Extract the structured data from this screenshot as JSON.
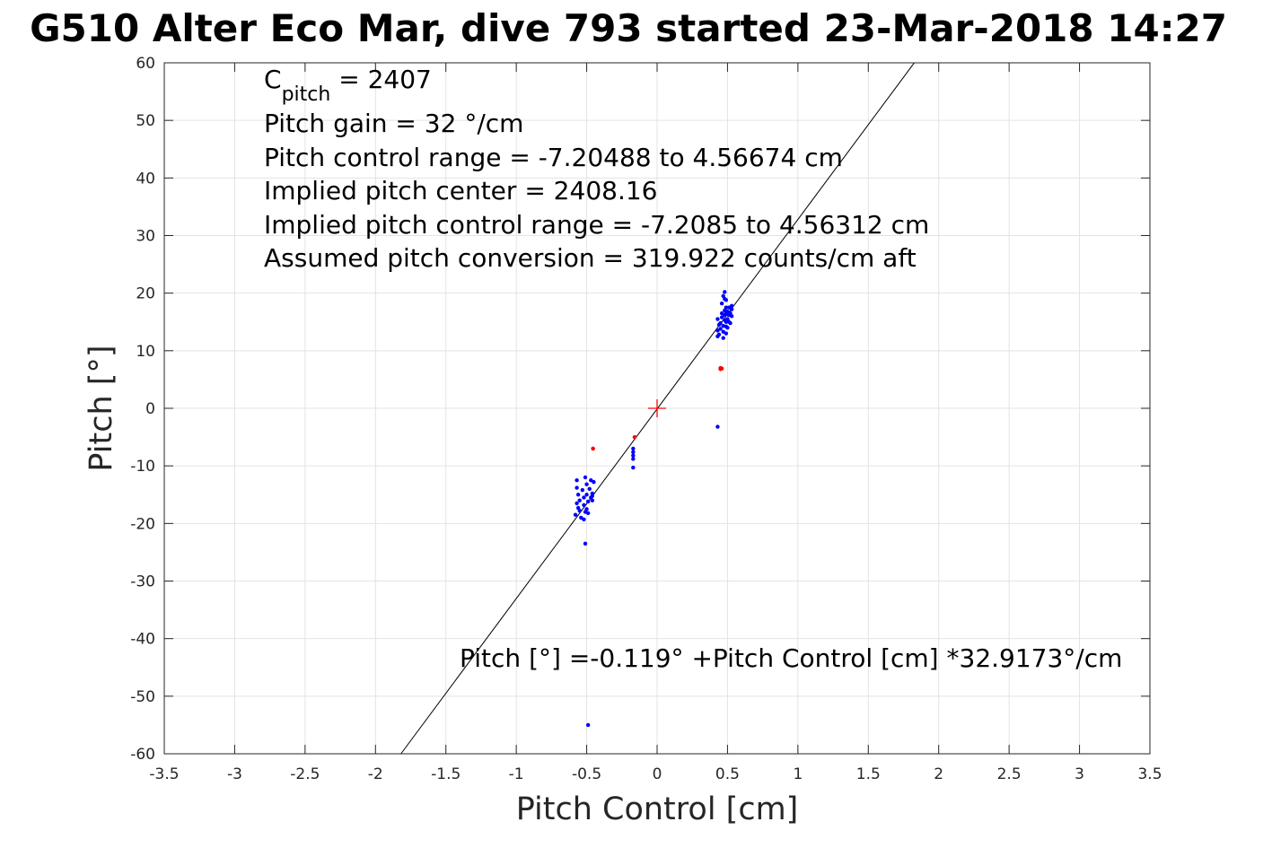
{
  "chart_data": {
    "type": "scatter",
    "title": "G510 Alter Eco Mar, dive 793 started 23-Mar-2018 14:27",
    "xlabel": "Pitch Control [cm]",
    "ylabel": "Pitch [°]",
    "xlim": [
      -3.5,
      3.5
    ],
    "ylim": [
      -60,
      60
    ],
    "xticks": [
      -3.5,
      -3,
      -2.5,
      -2,
      -1.5,
      -1,
      -0.5,
      0,
      0.5,
      1,
      1.5,
      2,
      2.5,
      3,
      3.5
    ],
    "xtick_labels": [
      "-3.5",
      "-3",
      "-2.5",
      "-2",
      "-1.5",
      "-1",
      "-0.5",
      "0",
      "0.5",
      "1",
      "1.5",
      "2",
      "2.5",
      "3",
      "3.5"
    ],
    "yticks": [
      -60,
      -50,
      -40,
      -30,
      -20,
      -10,
      0,
      10,
      20,
      30,
      40,
      50,
      60
    ],
    "ytick_labels": [
      "-60",
      "-50",
      "-40",
      "-30",
      "-20",
      "-10",
      "0",
      "10",
      "20",
      "30",
      "40",
      "50",
      "60"
    ],
    "grid": true,
    "fit_line": {
      "intercept": -0.119,
      "slope": 32.9173,
      "color": "#000000"
    },
    "center_marker": {
      "x": 0,
      "y": 0,
      "color": "#ff0000",
      "marker": "+"
    },
    "annotations": {
      "c_pitch_main": "C",
      "c_pitch_sub": "pitch",
      "c_pitch_value": " = 2407",
      "lines": [
        "Pitch gain = 32 °/cm",
        "Pitch control range = -7.20488 to 4.56674 cm",
        "Implied pitch center = 2408.16",
        "Implied pitch control range = -7.2085 to 4.56312 cm",
        "Assumed pitch conversion = 319.922 counts/cm aft"
      ],
      "fit_equation": "Pitch [°] =-0.119° +Pitch Control [cm] *32.9173°/cm"
    },
    "series": [
      {
        "color": "#0000ff",
        "points": [
          [
            -0.57,
            -12.5
          ],
          [
            -0.57,
            -13.8
          ],
          [
            -0.56,
            -15.0
          ],
          [
            -0.57,
            -16.5
          ],
          [
            -0.56,
            -17.3
          ],
          [
            -0.58,
            -18.5
          ],
          [
            -0.55,
            -17.8
          ],
          [
            -0.54,
            -19.0
          ],
          [
            -0.55,
            -16.0
          ],
          [
            -0.53,
            -14.2
          ],
          [
            -0.52,
            -15.5
          ],
          [
            -0.52,
            -16.8
          ],
          [
            -0.51,
            -18.0
          ],
          [
            -0.52,
            -19.3
          ],
          [
            -0.51,
            -12.0
          ],
          [
            -0.5,
            -13.2
          ],
          [
            -0.5,
            -15.0
          ],
          [
            -0.49,
            -16.2
          ],
          [
            -0.5,
            -17.5
          ],
          [
            -0.49,
            -18.2
          ],
          [
            -0.48,
            -14.0
          ],
          [
            -0.47,
            -15.5
          ],
          [
            -0.47,
            -12.5
          ],
          [
            -0.46,
            -14.8
          ],
          [
            -0.46,
            -16.0
          ],
          [
            -0.45,
            -12.8
          ],
          [
            -0.46,
            -15.2
          ],
          [
            -0.51,
            -23.5
          ],
          [
            -0.49,
            -55.0
          ],
          [
            -0.17,
            -7.0
          ],
          [
            -0.17,
            -7.6
          ],
          [
            -0.17,
            -8.2
          ],
          [
            -0.17,
            -8.8
          ],
          [
            -0.17,
            -10.3
          ],
          [
            0.43,
            -3.2
          ],
          [
            0.43,
            12.5
          ],
          [
            0.43,
            13.5
          ],
          [
            0.44,
            14.5
          ],
          [
            0.43,
            15.5
          ],
          [
            0.44,
            12.8
          ],
          [
            0.45,
            13.8
          ],
          [
            0.45,
            14.8
          ],
          [
            0.46,
            15.8
          ],
          [
            0.46,
            16.5
          ],
          [
            0.47,
            12.2
          ],
          [
            0.47,
            13.3
          ],
          [
            0.47,
            14.3
          ],
          [
            0.48,
            15.3
          ],
          [
            0.48,
            16.2
          ],
          [
            0.48,
            17.0
          ],
          [
            0.49,
            13.0
          ],
          [
            0.49,
            14.2
          ],
          [
            0.49,
            15.0
          ],
          [
            0.49,
            16.5
          ],
          [
            0.49,
            17.5
          ],
          [
            0.5,
            14.0
          ],
          [
            0.5,
            15.5
          ],
          [
            0.5,
            16.8
          ],
          [
            0.51,
            17.5
          ],
          [
            0.51,
            15.0
          ],
          [
            0.51,
            16.2
          ],
          [
            0.52,
            14.8
          ],
          [
            0.52,
            16.5
          ],
          [
            0.53,
            17.8
          ],
          [
            0.53,
            16.0
          ],
          [
            0.53,
            17.2
          ],
          [
            0.47,
            19.5
          ],
          [
            0.48,
            20.2
          ],
          [
            0.48,
            19.0
          ],
          [
            0.46,
            18.2
          ],
          [
            0.49,
            18.8
          ]
        ]
      },
      {
        "color": "#ff0000",
        "points": [
          [
            -0.455,
            -7.0
          ],
          [
            -0.455,
            -7.0
          ],
          [
            -0.16,
            -5.0
          ],
          [
            0.45,
            6.8
          ],
          [
            0.45,
            7.0
          ],
          [
            0.46,
            6.9
          ]
        ]
      }
    ]
  }
}
